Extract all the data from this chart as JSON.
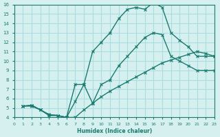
{
  "xlabel": "Humidex (Indice chaleur)",
  "bg_color": "#d6f0f0",
  "grid_color": "#aadddd",
  "line_color": "#1a7a6e",
  "xlim": [
    0,
    23
  ],
  "ylim": [
    4,
    16
  ],
  "xticks": [
    0,
    1,
    2,
    3,
    4,
    5,
    6,
    7,
    8,
    9,
    10,
    11,
    12,
    13,
    14,
    15,
    16,
    17,
    18,
    19,
    20,
    21,
    22,
    23
  ],
  "yticks": [
    4,
    5,
    6,
    7,
    8,
    9,
    10,
    11,
    12,
    13,
    14,
    15,
    16
  ],
  "curve1_x": [
    1,
    2,
    3,
    4,
    5,
    6,
    7,
    8,
    9,
    10,
    11,
    12,
    13,
    14,
    15,
    16,
    17,
    18,
    19,
    20,
    21,
    22,
    23
  ],
  "curve1_y": [
    5.2,
    5.3,
    4.8,
    4.3,
    4.2,
    4.0,
    7.5,
    7.5,
    11.0,
    12.0,
    13.0,
    14.5,
    15.5,
    15.7,
    15.5,
    16.2,
    15.7,
    13.0,
    12.2,
    11.5,
    10.5,
    10.5,
    10.5
  ],
  "curve2_x": [
    1,
    2,
    3,
    4,
    5,
    6,
    7,
    8,
    9,
    10,
    11,
    12,
    13,
    14,
    15,
    16,
    17,
    18,
    19,
    20,
    21,
    22,
    23
  ],
  "curve2_y": [
    5.2,
    5.3,
    4.8,
    4.3,
    4.2,
    4.0,
    5.7,
    7.5,
    5.5,
    7.5,
    8.0,
    9.5,
    10.5,
    11.5,
    12.5,
    13.0,
    12.8,
    10.5,
    10.0,
    9.5,
    9.0,
    9.0,
    9.0
  ],
  "curve3_x": [
    1,
    2,
    3,
    4,
    5,
    6,
    7,
    8,
    9,
    10,
    11,
    12,
    13,
    14,
    15,
    16,
    17,
    18,
    19,
    20,
    21,
    22,
    23
  ],
  "curve3_y": [
    5.2,
    5.2,
    4.8,
    4.2,
    4.2,
    4.0,
    4.0,
    4.8,
    5.5,
    6.2,
    6.8,
    7.3,
    7.8,
    8.3,
    8.8,
    9.3,
    9.8,
    10.1,
    10.4,
    10.7,
    11.0,
    10.8,
    10.5
  ]
}
